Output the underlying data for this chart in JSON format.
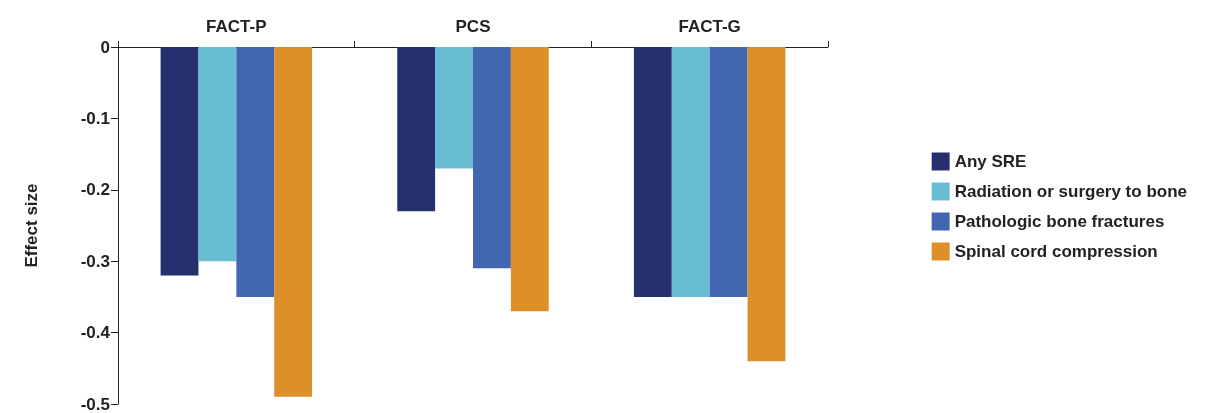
{
  "chart_data": {
    "type": "bar",
    "ylabel": "Effect size",
    "categories": [
      "FACT-P",
      "PCS",
      "FACT-G"
    ],
    "series": [
      {
        "name": "Any SRE",
        "color": "#27306f",
        "values": [
          -0.32,
          -0.23,
          -0.35
        ]
      },
      {
        "name": "Radiation or surgery to bone",
        "color": "#68bcd3",
        "values": [
          -0.3,
          -0.17,
          -0.35
        ]
      },
      {
        "name": "Pathologic bone fractures",
        "color": "#4266b0",
        "values": [
          -0.35,
          -0.31,
          -0.35
        ]
      },
      {
        "name": "Spinal cord compression",
        "color": "#dd9027",
        "values": [
          -0.49,
          -0.37,
          -0.44
        ]
      }
    ],
    "ylim": [
      -0.5,
      0
    ],
    "yticks": [
      0,
      -0.1,
      -0.2,
      -0.3,
      -0.4,
      -0.5
    ],
    "grid": false,
    "legend": "right"
  }
}
